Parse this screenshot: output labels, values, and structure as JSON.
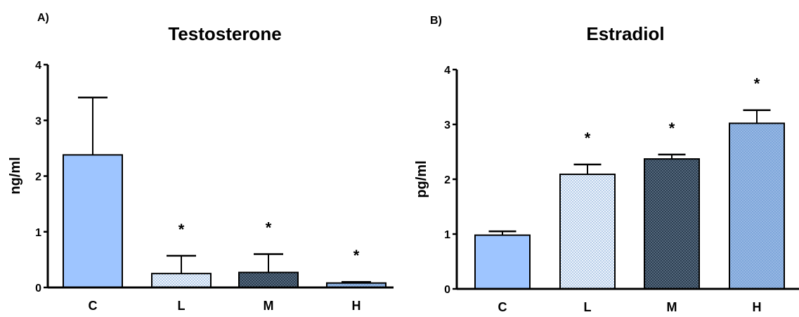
{
  "colors": {
    "C": "#9ec5ff",
    "L": "#c9dcf2",
    "M": "#34485c",
    "H": "#87aedf",
    "error_bar": "#000000",
    "axis": "#000000"
  },
  "chart_data": [
    {
      "type": "bar",
      "panel_label": "A)",
      "title": "Testosterone",
      "xlabel": "",
      "ylabel": "ng/ml",
      "ylim": [
        0,
        4
      ],
      "yticks": [
        "0",
        "1",
        "2",
        "3",
        "4"
      ],
      "categories": [
        "C",
        "L",
        "M",
        "H"
      ],
      "values": [
        2.38,
        0.25,
        0.27,
        0.08
      ],
      "errors": [
        1.03,
        0.32,
        0.33,
        0.02
      ],
      "annotations": [
        "",
        "*",
        "*",
        "*"
      ],
      "patterns": [
        "solid",
        "light-dots",
        "dark-dots",
        "mid-dots"
      ],
      "grid": false
    },
    {
      "type": "bar",
      "panel_label": "B)",
      "title": "Estradiol",
      "xlabel": "",
      "ylabel": "pg/ml",
      "ylim": [
        0,
        4
      ],
      "yticks": [
        "0",
        "1",
        "2",
        "3",
        "4"
      ],
      "categories": [
        "C",
        "L",
        "M",
        "H"
      ],
      "values": [
        0.98,
        2.09,
        2.37,
        3.02
      ],
      "errors": [
        0.07,
        0.18,
        0.08,
        0.24
      ],
      "annotations": [
        "",
        "*",
        "*",
        "*"
      ],
      "patterns": [
        "solid",
        "light-dots",
        "dark-dots",
        "mid-dots"
      ],
      "grid": false
    }
  ]
}
